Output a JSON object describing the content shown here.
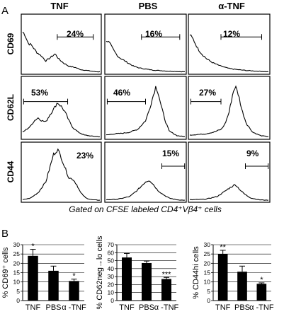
{
  "panel_a_label": "A",
  "panel_b_label": "B",
  "column_headers": [
    "TNF",
    "PBS",
    "α-TNF"
  ],
  "row_labels": [
    "CD69",
    "CD62L",
    "CD44"
  ],
  "histogram_percents": [
    [
      "24%",
      "16%",
      "12%"
    ],
    [
      "53%",
      "46%",
      "27%"
    ],
    [
      "23%",
      "15%",
      "9%"
    ]
  ],
  "gating_note": "Gated on CFSE labeled CD4⁺Vβ4⁺ cells",
  "chart_data": [
    {
      "type": "bar",
      "ylabel": "% CD69⁺ cells",
      "categories": [
        "TNF",
        "PBS",
        "α -TNF"
      ],
      "values": [
        24,
        16,
        10.5
      ],
      "errors": [
        3.5,
        2.5,
        1
      ],
      "significance": [
        "*",
        "",
        "*"
      ],
      "ylim": [
        0,
        30
      ],
      "yticks": [
        "0",
        "5",
        "10",
        "15",
        "20",
        "25",
        "30"
      ],
      "grid": true,
      "color": "#000000"
    },
    {
      "type": "bar",
      "ylabel": "% CD62neg→lo cells",
      "categories": [
        "TNF",
        "PBS",
        "α -TNF"
      ],
      "values": [
        54,
        47,
        27
      ],
      "errors": [
        5,
        2.5,
        2
      ],
      "significance": [
        "",
        "",
        "***"
      ],
      "ylim": [
        0,
        70
      ],
      "yticks": [
        "0",
        "10",
        "20",
        "30",
        "40",
        "50",
        "60",
        "70"
      ],
      "grid": true,
      "color": "#000000"
    },
    {
      "type": "bar",
      "ylabel": "% CD44hi cells",
      "categories": [
        "TNF",
        "PBS",
        "α -TNF"
      ],
      "values": [
        25,
        15.5,
        9
      ],
      "errors": [
        2,
        3,
        0.5
      ],
      "significance": [
        "**",
        "",
        "*"
      ],
      "ylim": [
        0,
        30
      ],
      "yticks": [
        "0",
        "5",
        "10",
        "15",
        "20",
        "25",
        "30"
      ],
      "grid": true,
      "color": "#000000"
    }
  ]
}
